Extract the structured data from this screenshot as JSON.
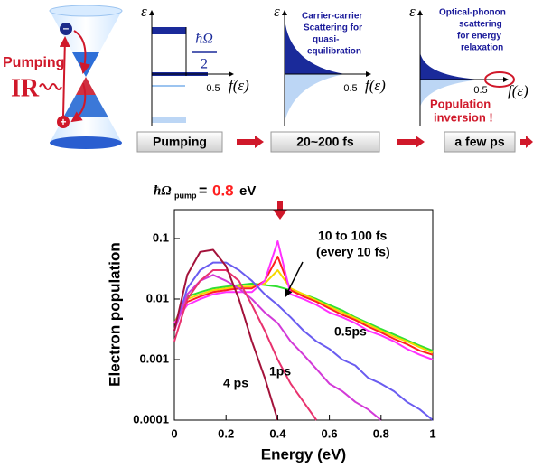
{
  "diagram": {
    "left": {
      "pumping": "Pumping",
      "ir": "IR"
    },
    "panels": [
      {
        "y_axis": "ε",
        "gap_top": "ħΩ",
        "gap_bottom": "2",
        "x_tick": "0.5",
        "x_axis": "f(ε)",
        "caption": "Pumping"
      },
      {
        "y_axis": "ε",
        "note": [
          "Carrier-carrier",
          "Scattering for",
          "quasi-",
          "equilibration"
        ],
        "x_tick": "0.5",
        "x_axis": "f(ε)",
        "caption": "20~200 fs"
      },
      {
        "y_axis": "ε",
        "note": [
          "Optical-phonon",
          "scattering",
          "for energy",
          "relaxation"
        ],
        "x_tick": "0.5",
        "x_axis": "f(ε)",
        "alert": [
          "Population",
          "inversion !"
        ],
        "caption": "a few ps"
      }
    ]
  },
  "chart_data": {
    "type": "line",
    "pump_label": {
      "symbol": "ħΩ",
      "subscript": "pump",
      "equals": "=",
      "value": "0.8",
      "unit": "eV"
    },
    "xlabel": "Energy (eV)",
    "ylabel": "Electron population",
    "annotations": [
      "10 to 100 fs",
      "(every 10 fs)"
    ],
    "log_y": true,
    "xlim": [
      0,
      1
    ],
    "ylim": [
      0.0001,
      0.3
    ],
    "xticks": [
      0,
      0.2,
      0.4,
      0.6,
      0.8,
      1
    ],
    "yticks": [
      0.0001,
      0.001,
      0.01,
      0.1
    ],
    "x": [
      0,
      0.05,
      0.1,
      0.15,
      0.2,
      0.25,
      0.3,
      0.35,
      0.4,
      0.45,
      0.5,
      0.55,
      0.6,
      0.65,
      0.7,
      0.75,
      0.8,
      0.85,
      0.9,
      0.95,
      1
    ],
    "series": [
      {
        "name": "4 ps",
        "color": "#a3123a",
        "values": [
          0.003,
          0.025,
          0.06,
          0.065,
          0.035,
          0.01,
          0.002,
          0.0005,
          0.0001,
          null,
          null,
          null,
          null,
          null,
          null,
          null,
          null,
          null,
          null,
          null,
          null
        ]
      },
      {
        "name": "1ps",
        "color": "#e8326e",
        "values": [
          0.002,
          0.01,
          0.02,
          0.03,
          0.03,
          0.02,
          0.008,
          0.003,
          0.001,
          0.0004,
          0.0002,
          0.0001,
          null,
          null,
          null,
          null,
          null,
          null,
          null,
          null,
          null
        ]
      },
      {
        "name": "0.5ps",
        "color": "#d23ad8",
        "values": [
          0.003,
          0.012,
          0.02,
          0.025,
          0.02,
          0.015,
          0.01,
          0.006,
          0.004,
          0.002,
          0.0012,
          0.0007,
          0.0004,
          0.0003,
          0.0002,
          0.00015,
          0.0001,
          null,
          null,
          null,
          null
        ]
      },
      {
        "color": "#6a5cf0",
        "values": [
          0.003,
          0.015,
          0.03,
          0.04,
          0.04,
          0.03,
          0.02,
          0.012,
          0.008,
          0.005,
          0.003,
          0.002,
          0.0015,
          0.001,
          0.0008,
          0.0005,
          0.0004,
          0.0003,
          0.0002,
          0.00015,
          0.0001
        ]
      },
      {
        "color": "#ff30ff",
        "values": [
          0.004,
          0.008,
          0.01,
          0.012,
          0.013,
          0.013,
          0.013,
          0.02,
          0.09,
          0.012,
          0.01,
          0.008,
          0.006,
          0.005,
          0.004,
          0.003,
          0.0025,
          0.002,
          0.0015,
          0.0012,
          0.001
        ]
      },
      {
        "color": "#ff2020",
        "values": [
          0.004,
          0.009,
          0.011,
          0.013,
          0.014,
          0.015,
          0.015,
          0.02,
          0.05,
          0.014,
          0.011,
          0.009,
          0.007,
          0.0055,
          0.0045,
          0.0035,
          0.0028,
          0.0022,
          0.0018,
          0.0014,
          0.0012
        ]
      },
      {
        "color": "#f5d800",
        "values": [
          0.004,
          0.01,
          0.012,
          0.014,
          0.015,
          0.016,
          0.016,
          0.018,
          0.03,
          0.015,
          0.012,
          0.0095,
          0.0075,
          0.006,
          0.0048,
          0.0038,
          0.003,
          0.0024,
          0.002,
          0.0016,
          0.0013
        ]
      },
      {
        "color": "#30e030",
        "values": [
          0.004,
          0.011,
          0.013,
          0.015,
          0.016,
          0.017,
          0.018,
          0.017,
          0.016,
          0.014,
          0.012,
          0.01,
          0.008,
          0.0065,
          0.005,
          0.004,
          0.0032,
          0.0026,
          0.0021,
          0.0017,
          0.0014
        ]
      }
    ]
  }
}
